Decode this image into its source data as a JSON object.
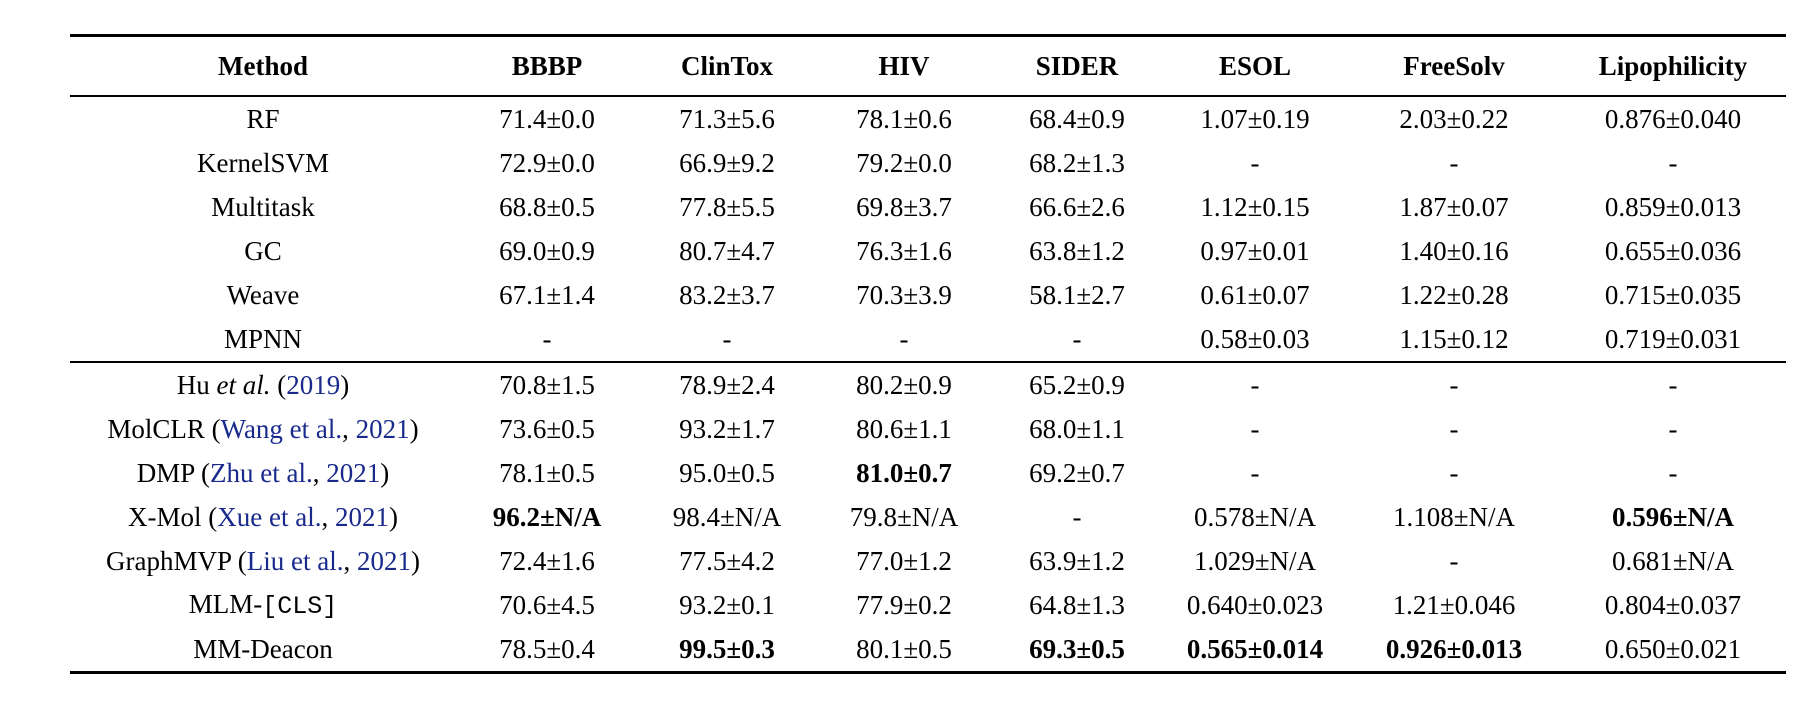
{
  "headers": [
    "Method",
    "BBBP",
    "ClinTox",
    "HIV",
    "SIDER",
    "ESOL",
    "FreeSolv",
    "Lipophilicity"
  ],
  "rows": [
    {
      "method": "RF",
      "values": [
        "71.4±0.0",
        "71.3±5.6",
        "78.1±0.6",
        "68.4±0.9",
        "1.07±0.19",
        "2.03±0.22",
        "0.876±0.040"
      ],
      "bold": []
    },
    {
      "method": "KernelSVM",
      "values": [
        "72.9±0.0",
        "66.9±9.2",
        "79.2±0.0",
        "68.2±1.3",
        "-",
        "-",
        "-"
      ],
      "bold": []
    },
    {
      "method": "Multitask",
      "values": [
        "68.8±0.5",
        "77.8±5.5",
        "69.8±3.7",
        "66.6±2.6",
        "1.12±0.15",
        "1.87±0.07",
        "0.859±0.013"
      ],
      "bold": []
    },
    {
      "method": "GC",
      "values": [
        "69.0±0.9",
        "80.7±4.7",
        "76.3±1.6",
        "63.8±1.2",
        "0.97±0.01",
        "1.40±0.16",
        "0.655±0.036"
      ],
      "bold": []
    },
    {
      "method": "Weave",
      "values": [
        "67.1±1.4",
        "83.2±3.7",
        "70.3±3.9",
        "58.1±2.7",
        "0.61±0.07",
        "1.22±0.28",
        "0.715±0.035"
      ],
      "bold": []
    },
    {
      "method": "MPNN",
      "values": [
        "-",
        "-",
        "-",
        "-",
        "0.58±0.03",
        "1.15±0.12",
        "0.719±0.031"
      ],
      "bold": []
    },
    {
      "method": "Hu",
      "method_italic": "et al.",
      "open": " (",
      "cite": "2019",
      "close": ")",
      "values": [
        "70.8±1.5",
        "78.9±2.4",
        "80.2±0.9",
        "65.2±0.9",
        "-",
        "-",
        "-"
      ],
      "bold": [],
      "group_start": true
    },
    {
      "method": "MolCLR",
      "open": " (",
      "cite": "Wang et al.",
      "sep": ", ",
      "cite_year": "2021",
      "close": ")",
      "values": [
        "73.6±0.5",
        "93.2±1.7",
        "80.6±1.1",
        "68.0±1.1",
        "-",
        "-",
        "-"
      ],
      "bold": []
    },
    {
      "method": "DMP",
      "open": " (",
      "cite": "Zhu et al.",
      "sep": ", ",
      "cite_year": "2021",
      "close": ")",
      "values": [
        "78.1±0.5",
        "95.0±0.5",
        "81.0±0.7",
        "69.2±0.7",
        "-",
        "-",
        "-"
      ],
      "bold": [
        2
      ]
    },
    {
      "method": "X-Mol",
      "open": " (",
      "cite": "Xue et al.",
      "sep": ", ",
      "cite_year": "2021",
      "close": ")",
      "values": [
        "96.2±N/A",
        "98.4±N/A",
        "79.8±N/A",
        "-",
        "0.578±N/A",
        "1.108±N/A",
        "0.596±N/A"
      ],
      "bold": [
        0,
        6
      ]
    },
    {
      "method": "GraphMVP",
      "open": " (",
      "cite": "Liu et al.",
      "sep": ", ",
      "cite_year": "2021",
      "close": ")",
      "values": [
        "72.4±1.6",
        "77.5±4.2",
        "77.0±1.2",
        "63.9±1.2",
        "1.029±N/A",
        "-",
        "0.681±N/A"
      ],
      "bold": []
    },
    {
      "method": "MLM-",
      "method_mono": "[CLS]",
      "values": [
        "70.6±4.5",
        "93.2±0.1",
        "77.9±0.2",
        "64.8±1.3",
        "0.640±0.023",
        "1.21±0.046",
        "0.804±0.037"
      ],
      "bold": []
    },
    {
      "method": "MM-Deacon",
      "values": [
        "78.5±0.4",
        "99.5±0.3",
        "80.1±0.5",
        "69.3±0.5",
        "0.565±0.014",
        "0.926±0.013",
        "0.650±0.021"
      ],
      "bold": [
        1,
        3,
        4,
        5
      ],
      "last": true
    }
  ]
}
